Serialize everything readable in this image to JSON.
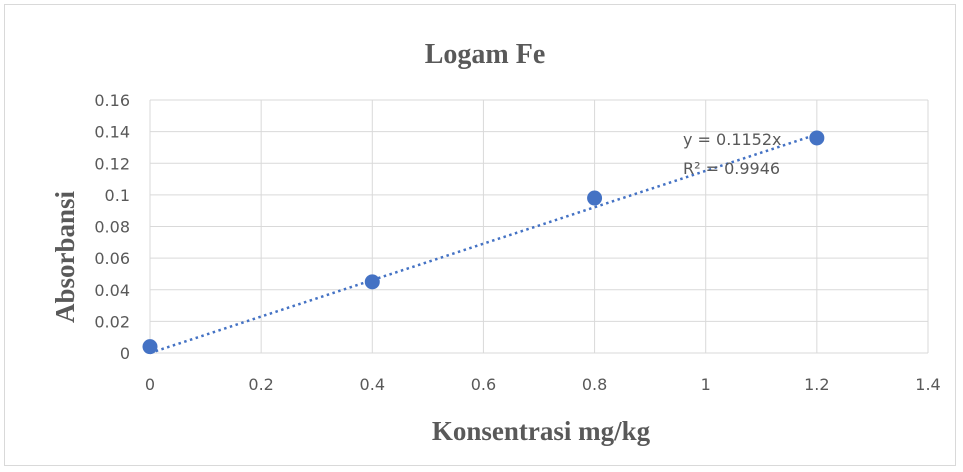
{
  "chart_data": {
    "type": "scatter",
    "title": "Logam Fe",
    "xlabel": "Konsentrasi mg/kg",
    "ylabel": "Absorbansi",
    "xlim": [
      0,
      1.4
    ],
    "ylim": [
      0,
      0.16
    ],
    "x_ticks": [
      "0",
      "0.2",
      "0.4",
      "0.6",
      "0.8",
      "1",
      "1.2",
      "1.4"
    ],
    "y_ticks": [
      "0",
      "0.02",
      "0.04",
      "0.06",
      "0.08",
      "0.1",
      "0.12",
      "0.14",
      "0.16"
    ],
    "grid": true,
    "series": [
      {
        "x": [
          0,
          0.4,
          0.8,
          1.2
        ],
        "y": [
          0.004,
          0.045,
          0.098,
          0.136
        ]
      }
    ],
    "trendline": {
      "type": "linear",
      "slope": 0.1152,
      "intercept": 0,
      "style": "dotted",
      "equation_label": "y = 0.1152x",
      "r2_label": "R² = 0.9946"
    },
    "colors": {
      "marker": "#4472c4",
      "trendline": "#4472c4",
      "grid": "#d9d9d9",
      "text": "#595959"
    }
  }
}
